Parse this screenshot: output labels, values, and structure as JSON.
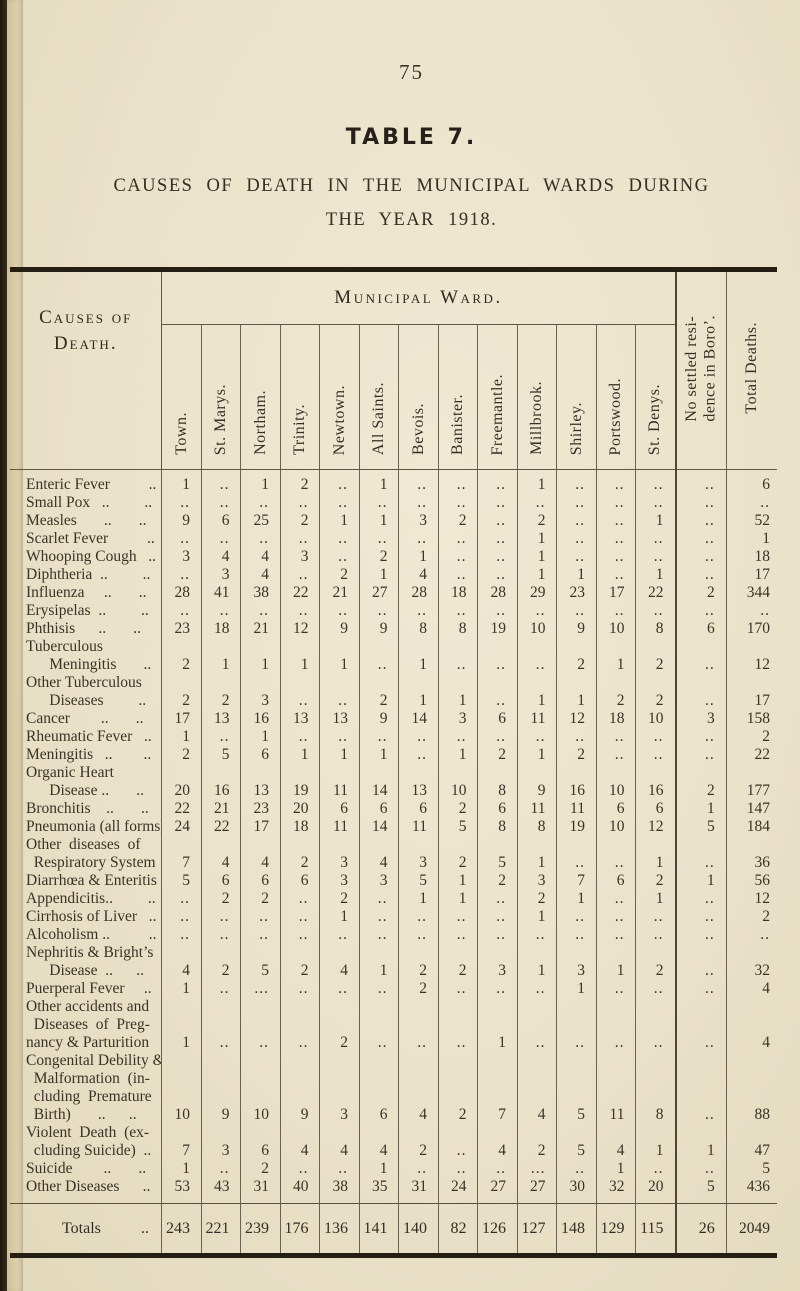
{
  "page": {
    "page_number": "75",
    "title": "TABLE 7.",
    "subtitle_line1": "CAUSES OF DEATH IN THE MUNICIPAL WARDS DURING",
    "subtitle_line2": "THE YEAR 1918."
  },
  "table": {
    "corner_header": "Causes of\nDeath.",
    "group_header": "Municipal Ward.",
    "ward_columns": [
      "Town.",
      "St. Marys.",
      "Northam.",
      "Trinity.",
      "Newtown.",
      "All Saints.",
      "Bevois.",
      "Banister.",
      "Freemantle.",
      "Millbrook.",
      "Shirley.",
      "Portswood.",
      "St. Denys."
    ],
    "extra_columns": [
      "No settled resi-\ndence in Boro’.",
      "Total Deaths."
    ],
    "rows": [
      {
        "label": "Enteric Fever          ..",
        "values": [
          "1",
          "..",
          "1",
          "2",
          "..",
          "1",
          "..",
          "..",
          "..",
          "1",
          "..",
          "..",
          "..",
          "..",
          "6"
        ]
      },
      {
        "label": "Small Pox   ..         ..",
        "values": [
          "..",
          "..",
          "..",
          "..",
          "..",
          "..",
          "..",
          "..",
          "..",
          "..",
          "..",
          "..",
          "..",
          "..",
          ".."
        ]
      },
      {
        "label": "Measles       ..       ..",
        "values": [
          "9",
          "6",
          "25",
          "2",
          "1",
          "1",
          "3",
          "2",
          "..",
          "2",
          "..",
          "..",
          "1",
          "..",
          "52"
        ]
      },
      {
        "label": "Scarlet Fever          ..",
        "values": [
          "..",
          "..",
          "..",
          "..",
          "..",
          "..",
          "..",
          "..",
          "..",
          "1",
          "..",
          "..",
          "..",
          "..",
          "1"
        ]
      },
      {
        "label": "Whooping Cough   ..",
        "values": [
          "3",
          "4",
          "4",
          "3",
          "..",
          "2",
          "1",
          "..",
          "..",
          "1",
          "..",
          "..",
          "..",
          "..",
          "18"
        ]
      },
      {
        "label": "Diphtheria  ..         ..",
        "values": [
          "..",
          "3",
          "4",
          "..",
          "2",
          "1",
          "4",
          "..",
          "..",
          "1",
          "1",
          "..",
          "1",
          "..",
          "17"
        ]
      },
      {
        "label": "Influenza     ..       ..",
        "values": [
          "28",
          "41",
          "38",
          "22",
          "21",
          "27",
          "28",
          "18",
          "28",
          "29",
          "23",
          "17",
          "22",
          "2",
          "344"
        ]
      },
      {
        "label": "Erysipelas  ..         ..",
        "values": [
          "..",
          "..",
          "..",
          "..",
          "..",
          "..",
          "..",
          "..",
          "..",
          "..",
          "..",
          "..",
          "..",
          "..",
          ".."
        ]
      },
      {
        "label": "Phthisis      ..       ..",
        "values": [
          "23",
          "18",
          "21",
          "12",
          "9",
          "9",
          "8",
          "8",
          "19",
          "10",
          "9",
          "10",
          "8",
          "6",
          "170"
        ]
      },
      {
        "label": "Tuberculous\n      Meningitis       ..",
        "values": [
          "2",
          "1",
          "1",
          "1",
          "1",
          "..",
          "1",
          "..",
          "..",
          "..",
          "2",
          "1",
          "2",
          "..",
          "12"
        ]
      },
      {
        "label": "Other Tuberculous\n      Diseases         ..",
        "values": [
          "2",
          "2",
          "3",
          "..",
          "..",
          "2",
          "1",
          "1",
          "..",
          "1",
          "1",
          "2",
          "2",
          "..",
          "17"
        ]
      },
      {
        "label": "Cancer        ..       ..",
        "values": [
          "17",
          "13",
          "16",
          "13",
          "13",
          "9",
          "14",
          "3",
          "6",
          "11",
          "12",
          "18",
          "10",
          "3",
          "158"
        ]
      },
      {
        "label": "Rheumatic Fever   ..",
        "values": [
          "1",
          "..",
          "1",
          "..",
          "..",
          "..",
          "..",
          "..",
          "..",
          "..",
          "..",
          "..",
          "..",
          "..",
          "2"
        ]
      },
      {
        "label": "Meningitis   ..        ..",
        "values": [
          "2",
          "5",
          "6",
          "1",
          "1",
          "1",
          "..",
          "1",
          "2",
          "1",
          "2",
          "..",
          "..",
          "..",
          "22"
        ]
      },
      {
        "label": "Organic Heart\n      Disease ..       ..",
        "values": [
          "20",
          "16",
          "13",
          "19",
          "11",
          "14",
          "13",
          "10",
          "8",
          "9",
          "16",
          "10",
          "16",
          "2",
          "177"
        ]
      },
      {
        "label": "Bronchitis    ..       ..",
        "values": [
          "22",
          "21",
          "23",
          "20",
          "6",
          "6",
          "6",
          "2",
          "6",
          "11",
          "11",
          "6",
          "6",
          "1",
          "147"
        ]
      },
      {
        "label": "Pneumonia (all forms)",
        "values": [
          "24",
          "22",
          "17",
          "18",
          "11",
          "14",
          "11",
          "5",
          "8",
          "8",
          "19",
          "10",
          "12",
          "5",
          "184"
        ]
      },
      {
        "label": "Other  diseases  of\n  Respiratory System",
        "values": [
          "7",
          "4",
          "4",
          "2",
          "3",
          "4",
          "3",
          "2",
          "5",
          "1",
          "..",
          "..",
          "1",
          "..",
          "36"
        ]
      },
      {
        "label": "Diarrhœa & Enteritis",
        "values": [
          "5",
          "6",
          "6",
          "6",
          "3",
          "3",
          "5",
          "1",
          "2",
          "3",
          "7",
          "6",
          "2",
          "1",
          "56"
        ]
      },
      {
        "label": "Appendicitis..         ..",
        "values": [
          "..",
          "2",
          "2",
          "..",
          "2",
          "..",
          "1",
          "1",
          "..",
          "2",
          "1",
          "..",
          "1",
          "..",
          "12"
        ]
      },
      {
        "label": "Cirrhosis of Liver   ..",
        "values": [
          "..",
          "..",
          "..",
          "..",
          "1",
          "..",
          "..",
          "..",
          "..",
          "1",
          "..",
          "..",
          "..",
          "..",
          "2"
        ]
      },
      {
        "label": "Alcoholism ..          ..",
        "values": [
          "..",
          "..",
          "..",
          "..",
          "..",
          "..",
          "..",
          "..",
          "..",
          "..",
          "..",
          "..",
          "..",
          "..",
          ".."
        ]
      },
      {
        "label": "Nephritis & Bright’s\n      Disease  ..      ..",
        "values": [
          "4",
          "2",
          "5",
          "2",
          "4",
          "1",
          "2",
          "2",
          "3",
          "1",
          "3",
          "1",
          "2",
          "..",
          "32"
        ]
      },
      {
        "label": "Puerperal Fever     ..",
        "values": [
          "1",
          "..",
          "...",
          "..",
          "..",
          "..",
          "2",
          "..",
          "..",
          "..",
          "1",
          "..",
          "..",
          "..",
          "4"
        ]
      },
      {
        "label": "Other accidents and\n  Diseases  of  Preg-\nnancy & Parturition",
        "values": [
          "1",
          "..",
          "..",
          "..",
          "2",
          "..",
          "..",
          "..",
          "1",
          "..",
          "..",
          "..",
          "..",
          "..",
          "4"
        ]
      },
      {
        "label": "Congenital Debility &\n  Malformation  (in-\n  cluding  Premature\n  Birth)       ..      ..",
        "values": [
          "10",
          "9",
          "10",
          "9",
          "3",
          "6",
          "4",
          "2",
          "7",
          "4",
          "5",
          "11",
          "8",
          "..",
          "88"
        ]
      },
      {
        "label": "Violent  Death  (ex-\n  cluding Suicide)  ..",
        "values": [
          "7",
          "3",
          "6",
          "4",
          "4",
          "4",
          "2",
          "..",
          "4",
          "2",
          "5",
          "4",
          "1",
          "1",
          "47"
        ]
      },
      {
        "label": "Suicide        ..       ..",
        "values": [
          "1",
          "..",
          "2",
          "..",
          "..",
          "1",
          "..",
          "..",
          "..",
          "...",
          "..",
          "1",
          "..",
          "..",
          "5"
        ]
      },
      {
        "label": "Other Diseases      ..",
        "values": [
          "53",
          "43",
          "31",
          "40",
          "38",
          "35",
          "31",
          "24",
          "27",
          "27",
          "30",
          "32",
          "20",
          "5",
          "436"
        ]
      }
    ],
    "totals": {
      "label": "Totals          ..",
      "values": [
        "243",
        "221",
        "239",
        "176",
        "136",
        "141",
        "140",
        "82",
        "126",
        "127",
        "148",
        "129",
        "115",
        "26",
        "2049"
      ]
    }
  }
}
